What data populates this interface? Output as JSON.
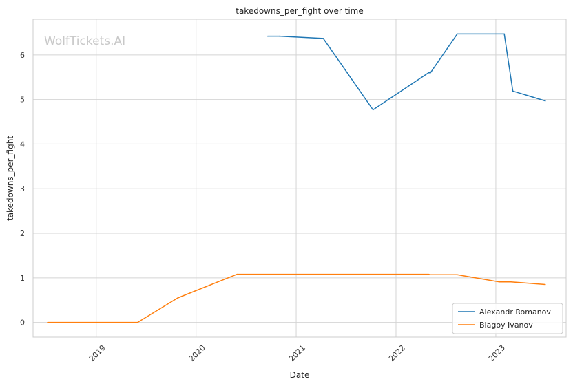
{
  "watermark": "WolfTickets.AI",
  "chart_data": {
    "type": "line",
    "title": "takedowns_per_fight over time",
    "xlabel": "Date",
    "ylabel": "takedowns_per_fight",
    "x_ticks": [
      "2019",
      "2020",
      "2021",
      "2022",
      "2023"
    ],
    "y_ticks": [
      0,
      1,
      2,
      3,
      4,
      5,
      6
    ],
    "xlim": [
      "2018-05-15",
      "2023-09-15"
    ],
    "ylim": [
      -0.33,
      6.8
    ],
    "grid": true,
    "legend_position": "bottom-right",
    "colors": {
      "Alexandr Romanov": "#1f77b4",
      "Blagoy Ivanov": "#ff7f0e"
    },
    "series": [
      {
        "name": "Alexandr Romanov",
        "points": [
          {
            "x": "2020-09-19",
            "y": 6.42
          },
          {
            "x": "2020-11-01",
            "y": 6.42
          },
          {
            "x": "2021-04-10",
            "y": 6.37
          },
          {
            "x": "2021-10-09",
            "y": 4.77
          },
          {
            "x": "2022-04-30",
            "y": 5.6
          },
          {
            "x": "2022-05-07",
            "y": 5.6
          },
          {
            "x": "2022-08-13",
            "y": 6.47
          },
          {
            "x": "2023-02-01",
            "y": 6.47
          },
          {
            "x": "2023-03-04",
            "y": 5.19
          },
          {
            "x": "2023-07-01",
            "y": 4.97
          }
        ]
      },
      {
        "name": "Blagoy Ivanov",
        "points": [
          {
            "x": "2018-07-07",
            "y": 0.0
          },
          {
            "x": "2019-06-01",
            "y": 0.0
          },
          {
            "x": "2019-10-26",
            "y": 0.55
          },
          {
            "x": "2020-05-30",
            "y": 1.08
          },
          {
            "x": "2022-04-30",
            "y": 1.08
          },
          {
            "x": "2022-05-07",
            "y": 1.07
          },
          {
            "x": "2022-08-13",
            "y": 1.07
          },
          {
            "x": "2023-01-14",
            "y": 0.91
          },
          {
            "x": "2023-02-25",
            "y": 0.91
          },
          {
            "x": "2023-07-01",
            "y": 0.85
          }
        ]
      }
    ]
  }
}
